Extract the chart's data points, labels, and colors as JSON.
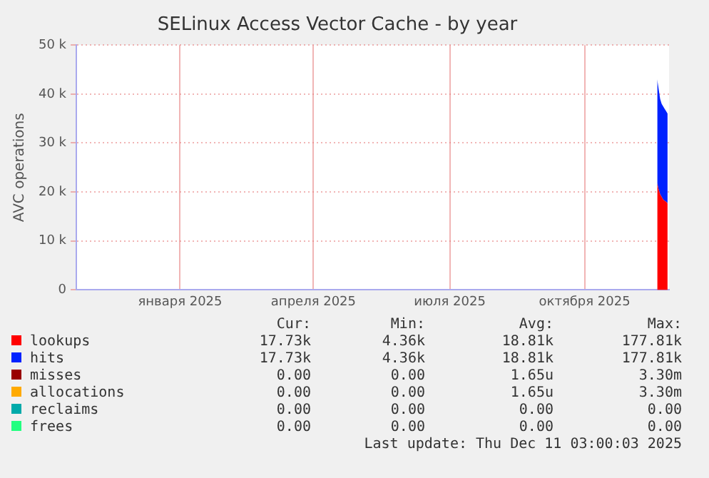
{
  "chart_data": {
    "type": "area",
    "title": "SELinux Access Vector Cache - by year",
    "ylabel": "AVC operations",
    "stacked": true,
    "grid": true,
    "legend": "bottom",
    "x": [
      "2025-12-03",
      "2025-12-04",
      "2025-12-05",
      "2025-12-06",
      "2025-12-07",
      "2025-12-08",
      "2025-12-09",
      "2025-12-10"
    ],
    "xlim": [
      "2024-11-06",
      "2025-12-11"
    ],
    "xticks": [
      {
        "value": "2025-01-15",
        "label": "января 2025"
      },
      {
        "value": "2025-04-15",
        "label": "апреля 2025"
      },
      {
        "value": "2025-07-16",
        "label": "июля 2025"
      },
      {
        "value": "2025-10-15",
        "label": "октября 2025"
      }
    ],
    "ylim": [
      0,
      50000
    ],
    "yticks": [
      0,
      {
        "value": 10000,
        "label": "10 k"
      },
      {
        "value": 20000,
        "label": "20 k"
      },
      {
        "value": 30000,
        "label": "30 k"
      },
      {
        "value": 40000,
        "label": "40 k"
      },
      {
        "value": 50000,
        "label": "50 k"
      }
    ],
    "series": [
      {
        "name": "lookups",
        "color": "#ff0000",
        "values": [
          21800,
          20500,
          19500,
          19000,
          18500,
          18200,
          18000,
          17700
        ]
      },
      {
        "name": "hits",
        "color": "#0022ff",
        "values": [
          21200,
          20500,
          19500,
          19000,
          19000,
          18800,
          18500,
          18300
        ]
      },
      {
        "name": "misses",
        "color": "#990000",
        "values": [
          null,
          null,
          null,
          null,
          null,
          null,
          null,
          null
        ]
      },
      {
        "name": "allocations",
        "color": "#ffaa00",
        "values": [
          null,
          null,
          null,
          null,
          null,
          null,
          null,
          null
        ]
      },
      {
        "name": "reclaims",
        "color": "#00aaaa",
        "values": [
          null,
          null,
          null,
          null,
          null,
          null,
          null,
          null
        ]
      },
      {
        "name": "frees",
        "color": "#22ff80",
        "values": [
          null,
          null,
          null,
          null,
          null,
          null,
          null,
          null
        ]
      }
    ],
    "annotations": [
      "Cur:",
      "Min:",
      "Avg:",
      "Max:",
      "17.73k",
      "4.36k",
      "18.81k",
      "177.81k",
      "17.73k",
      "4.36k",
      "18.81k",
      "177.81k",
      "0.00",
      "0.00",
      "1.65u",
      "3.30m",
      "0.00",
      "0.00",
      "1.65u",
      "3.30m",
      "0.00",
      "0.00",
      "0.00",
      "0.00",
      "0.00",
      "0.00",
      "0.00",
      "0.00",
      "Last update: Thu Dec 11 03:00:03 2025"
    ]
  }
}
